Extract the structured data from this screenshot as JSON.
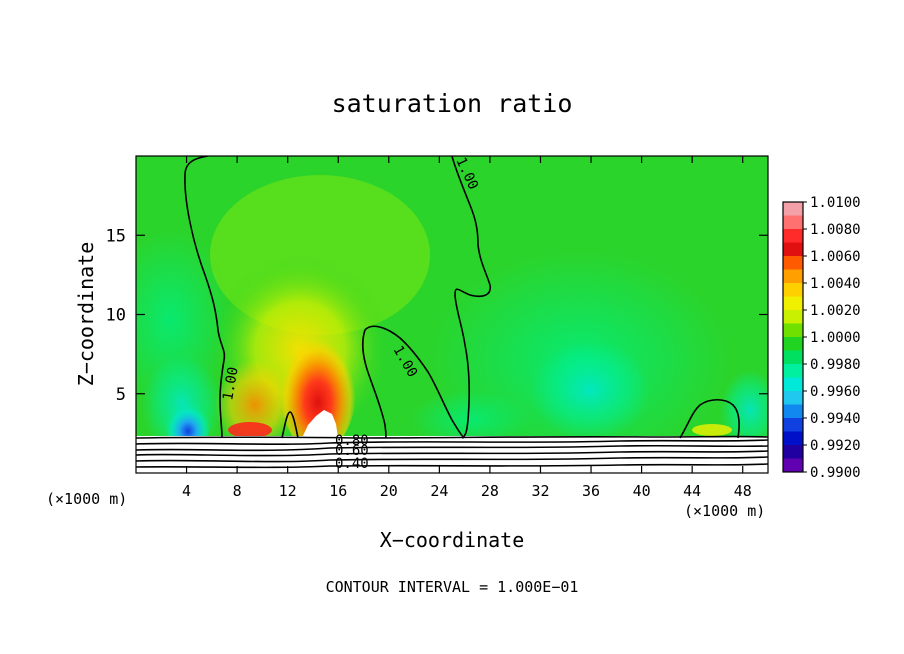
{
  "chart_data": {
    "type": "heatmap",
    "title": "saturation ratio",
    "xlabel": "X−coordinate",
    "ylabel": "Z−coordinate",
    "x_unit_left": "(×1000 m)",
    "x_unit_right": "(×1000 m)",
    "xlim": [
      0,
      50
    ],
    "ylim": [
      0,
      20
    ],
    "x_ticks": [
      4,
      8,
      12,
      16,
      20,
      24,
      28,
      32,
      36,
      40,
      44,
      48
    ],
    "y_ticks": [
      5,
      10,
      15
    ],
    "footer": "CONTOUR INTERVAL = 1.000E−01",
    "colorbar": {
      "min": 0.99,
      "max": 1.01,
      "labels": [
        "1.0100",
        "1.0080",
        "1.0060",
        "1.0040",
        "1.0020",
        "1.0000",
        "0.9980",
        "0.9960",
        "0.9940",
        "0.9920",
        "0.9900"
      ],
      "colors": [
        "#f4a0a8",
        "#ff7070",
        "#ff2a2a",
        "#e01010",
        "#ff5a00",
        "#ffa000",
        "#ffd000",
        "#f0f000",
        "#c8f000",
        "#70e000",
        "#22d422",
        "#00e060",
        "#00f0a0",
        "#00e8d8",
        "#20c8f0",
        "#1088f0",
        "#1040e0",
        "#0010c8",
        "#2000a0",
        "#6000b0"
      ]
    },
    "contour_labels": [
      {
        "text": "1.00",
        "x": 7.5,
        "z": 5.3
      },
      {
        "text": "1.00",
        "x": 25.8,
        "z": 18.5
      },
      {
        "text": "1.00",
        "x": 21.0,
        "z": 7.2
      },
      {
        "text": "0.80",
        "x": 17.5,
        "z": 1.9
      },
      {
        "text": "0.60",
        "x": 17.5,
        "z": 1.3
      },
      {
        "text": "0.40",
        "x": 17.5,
        "z": 0.6
      }
    ]
  }
}
